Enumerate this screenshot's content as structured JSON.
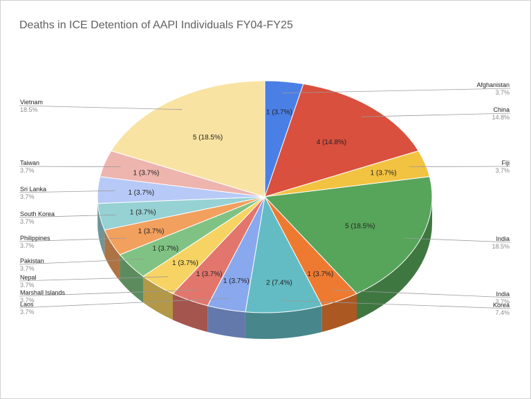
{
  "chart_data": {
    "type": "pie",
    "title": "Deaths in ICE Detention of AAPI Individuals FY04-FY25",
    "style": "3d",
    "slices": [
      {
        "label": "Afghanistan",
        "value": 1,
        "slice_label": "1 (3.7%)",
        "pct_label": "3.7%",
        "color": "#4a7fe6",
        "side": "right"
      },
      {
        "label": "China",
        "value": 4,
        "slice_label": "4 (14.8%)",
        "pct_label": "14.8%",
        "color": "#d9503e",
        "side": "right"
      },
      {
        "label": "Fiji",
        "value": 1,
        "slice_label": "1 (3.7%)",
        "pct_label": "3.7%",
        "color": "#f2c241",
        "side": "right"
      },
      {
        "label": "India",
        "value": 5,
        "slice_label": "5 (18.5%)",
        "pct_label": "18.5%",
        "color": "#57a55a",
        "side": "right"
      },
      {
        "label": "India",
        "value": 1,
        "slice_label": "1 (3.7%)",
        "pct_label": "3.7%",
        "color": "#ee7a31",
        "side": "right"
      },
      {
        "label": "Korea",
        "value": 2,
        "slice_label": "2 (7.4%)",
        "pct_label": "7.4%",
        "color": "#63bcc3",
        "side": "right"
      },
      {
        "label": "Laos",
        "value": 1,
        "slice_label": "1 (3.7%)",
        "pct_label": "3.7%",
        "color": "#89a8ee",
        "side": "left"
      },
      {
        "label": "Marshall Islands",
        "value": 1,
        "slice_label": "1 (3.7%)",
        "pct_label": "3.7%",
        "color": "#e2766c",
        "side": "left"
      },
      {
        "label": "Nepal",
        "value": 1,
        "slice_label": "1 (3.7%)",
        "pct_label": "3.7%",
        "color": "#f7d363",
        "side": "left"
      },
      {
        "label": "Pakistan",
        "value": 1,
        "slice_label": "1 (3.7%)",
        "pct_label": "3.7%",
        "color": "#80c283",
        "side": "left"
      },
      {
        "label": "Philippines",
        "value": 1,
        "slice_label": "1 (3.7%)",
        "pct_label": "3.7%",
        "color": "#f2a05e",
        "side": "left"
      },
      {
        "label": "South Korea",
        "value": 1,
        "slice_label": "1 (3.7%)",
        "pct_label": "3.7%",
        "color": "#96d1d4",
        "side": "left"
      },
      {
        "label": "Sri Lanka",
        "value": 1,
        "slice_label": "1 (3.7%)",
        "pct_label": "3.7%",
        "color": "#b7c9f6",
        "side": "left"
      },
      {
        "label": "Taiwan",
        "value": 1,
        "slice_label": "1 (3.7%)",
        "pct_label": "3.7%",
        "color": "#eeb4ae",
        "side": "left"
      },
      {
        "label": "Vietnam",
        "value": 5,
        "slice_label": "5 (18.5%)",
        "pct_label": "18.5%",
        "color": "#f9e3a3",
        "side": "left"
      }
    ]
  }
}
